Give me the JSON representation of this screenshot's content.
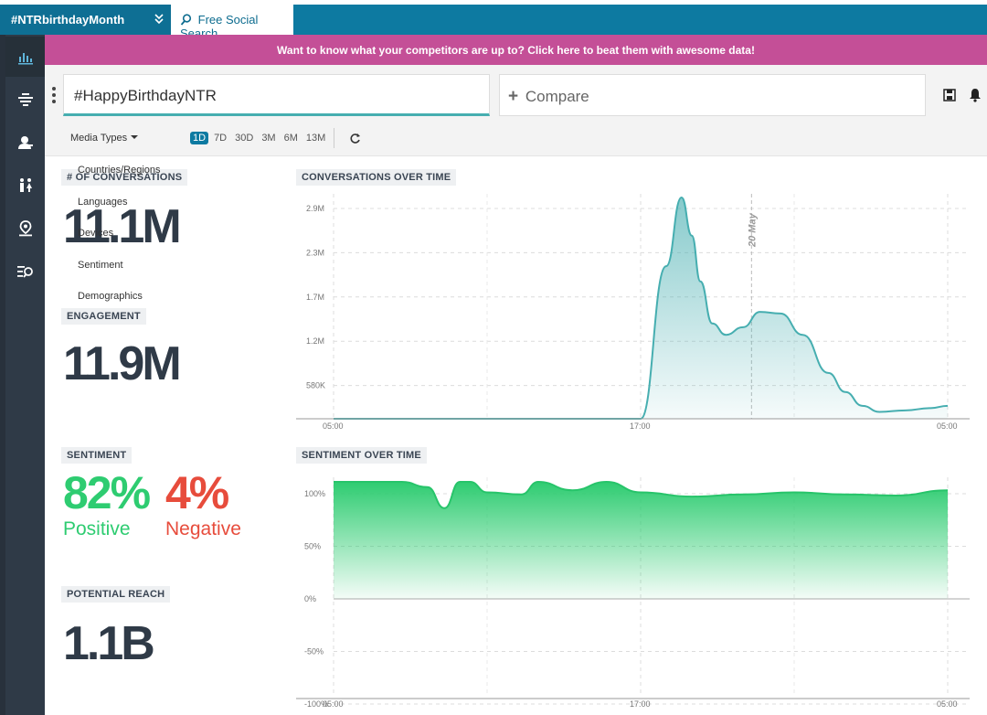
{
  "top_tabs": {
    "active_tab": "#NTRbirthdayMonth",
    "second_tab": "Free Social Search"
  },
  "sidebar": {
    "items": [
      {
        "icon": "bar-chart-icon"
      },
      {
        "icon": "stream-icon"
      },
      {
        "icon": "user-icon"
      },
      {
        "icon": "people-icon"
      },
      {
        "icon": "map-pin-icon"
      },
      {
        "icon": "list-search-icon"
      }
    ]
  },
  "banner": {
    "text": "Want to know what your competitors are up to? Click here to beat them with awesome data!"
  },
  "search": {
    "query": "#HappyBirthdayNTR",
    "compare_label": "Compare"
  },
  "filters": {
    "media_types": "Media Types",
    "ranges": [
      "1D",
      "7D",
      "30D",
      "3M",
      "6M",
      "13M"
    ],
    "selected_range": "1D",
    "dropdown_items": [
      "Countries/Regions",
      "Languages",
      "Devices",
      "Sentiment",
      "Demographics"
    ]
  },
  "metrics": {
    "conversations_label": "# OF CONVERSATIONS",
    "conversations_value": "11.1M",
    "engagement_label": "ENGAGEMENT",
    "engagement_value": "11.9M",
    "sentiment_label": "SENTIMENT",
    "positive_value": "82%",
    "positive_label": "Positive",
    "negative_value": "4%",
    "negative_label": "Negative",
    "reach_label": "POTENTIAL REACH",
    "reach_value": "1.1B"
  },
  "colors": {
    "brand_blue": "#0d7aa1",
    "banner_pink": "#c44f97",
    "positive_green": "#2ecc71",
    "negative_red": "#e74c3c",
    "conversation_teal": "#46aeb0"
  },
  "chart_data": [
    {
      "type": "area",
      "title": "CONVERSATIONS OVER TIME",
      "x_ticks": [
        "05:00",
        "17:00",
        "05:00"
      ],
      "y_ticks": [
        "580K",
        "1.2M",
        "1.7M",
        "2.3M",
        "2.9M"
      ],
      "annotation": "20 May",
      "series": [
        {
          "x_hours": [
            0,
            6,
            12,
            18,
            19.5,
            20.4,
            21.0,
            21.5,
            22.2,
            23.0,
            24.0,
            25.0,
            26.2,
            27.5,
            29.0,
            30.0,
            31.0,
            32.0,
            33.5,
            35.0,
            36.0
          ],
          "values": [
            0,
            0,
            0,
            0,
            2000000,
            2900000,
            2400000,
            1800000,
            1250000,
            1100000,
            1200000,
            1400000,
            1380000,
            1100000,
            600000,
            350000,
            170000,
            90000,
            110000,
            140000,
            170000
          ]
        }
      ]
    },
    {
      "type": "area",
      "title": "SENTIMENT OVER TIME",
      "x_ticks": [
        "05:00",
        "17:00",
        "05:00"
      ],
      "y_ticks": [
        "100%",
        "50%",
        "0%",
        "-50%",
        "-100%"
      ],
      "ylim": [
        -100,
        100
      ],
      "series": [
        {
          "x_hours": [
            0,
            4,
            5.5,
            6.5,
            7.4,
            8,
            9,
            11,
            12,
            14,
            16,
            18,
            21,
            24,
            27,
            30,
            33,
            36
          ],
          "values": [
            100,
            100,
            95,
            75,
            100,
            100,
            90,
            88,
            100,
            92,
            100,
            90,
            86,
            88,
            90,
            88,
            87,
            92
          ]
        }
      ]
    }
  ]
}
